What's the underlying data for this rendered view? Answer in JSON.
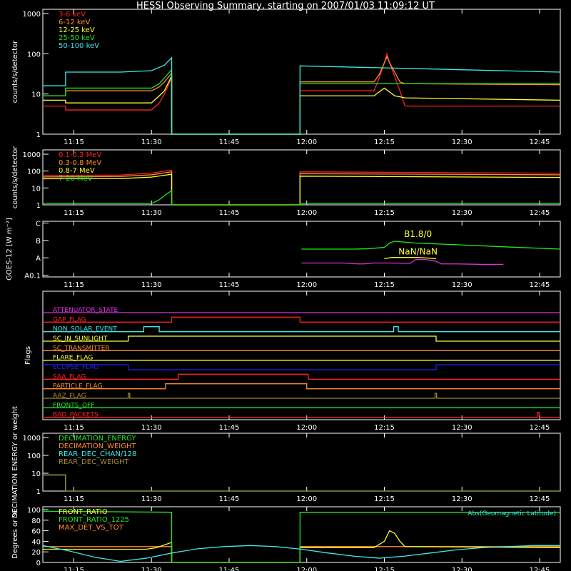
{
  "title": "HESSI Observing Summary, starting on 2007/01/03 11:09:12 UT",
  "time_labels": [
    "11:15",
    "11:30",
    "11:45",
    "12:00",
    "12:15",
    "12:30",
    "12:45"
  ],
  "time_minutes": [
    6,
    21,
    36,
    51,
    66,
    81,
    96
  ],
  "colors": {
    "red": "#ff2020",
    "orange": "#ff8c2a",
    "yellow": "#ffff30",
    "green": "#20e820",
    "cyan": "#40e8e8",
    "magenta": "#e030e0",
    "blue": "#2020ff",
    "olive": "#a08830",
    "white": "#ffffff"
  },
  "chart_data": [
    {
      "id": "lowE",
      "type": "line",
      "ylabel": "counts/s/detector",
      "yscale": "log",
      "ylim": [
        1,
        1000
      ],
      "ytick_labels": [
        "1",
        "10",
        "100",
        "1000"
      ],
      "legend": [
        {
          "name": "3-6 keV",
          "color": "red"
        },
        {
          "name": "6-12 keV",
          "color": "orange"
        },
        {
          "name": "12-25 keV",
          "color": "yellow"
        },
        {
          "name": "25-50 keV",
          "color": "green"
        },
        {
          "name": "50-100 keV",
          "color": "cyan"
        }
      ],
      "series": [
        {
          "name": "3-6 keV",
          "color": "red",
          "x": [
            0,
            4.4,
            4.4,
            21,
            22.5,
            23.5,
            24.9,
            24.9,
            49.7,
            49.7,
            64,
            65,
            66,
            66.5,
            67,
            69,
            70,
            100
          ],
          "y": [
            5,
            5,
            4,
            4,
            6,
            10,
            25,
            1,
            1,
            12,
            12,
            25,
            60,
            100,
            60,
            12,
            5,
            5
          ]
        },
        {
          "name": "6-12 keV",
          "color": "orange",
          "x": [
            0,
            4.4,
            4.4,
            21,
            22.5,
            23.5,
            24.9,
            24.9,
            49.7,
            49.7,
            64,
            65,
            66,
            66.5,
            67,
            69,
            70,
            100
          ],
          "y": [
            9,
            9,
            12,
            12,
            15,
            20,
            33,
            1,
            1,
            20,
            20,
            30,
            60,
            85,
            60,
            20,
            18,
            17
          ]
        },
        {
          "name": "12-25 keV",
          "color": "yellow",
          "x": [
            0,
            4.4,
            4.4,
            21,
            22.5,
            23.5,
            24.9,
            24.9,
            49.7,
            49.7,
            60,
            64,
            66,
            68,
            70,
            100
          ],
          "y": [
            7,
            7,
            6,
            6,
            9,
            12,
            28,
            1,
            1,
            9,
            9,
            9,
            14,
            9,
            8,
            7
          ]
        },
        {
          "name": "25-50 keV",
          "color": "green",
          "x": [
            0,
            4.4,
            4.4,
            21,
            22.5,
            24.9,
            24.9,
            49.7,
            49.7,
            100
          ],
          "y": [
            9,
            9,
            14,
            14,
            18,
            40,
            1,
            1,
            18,
            18
          ]
        },
        {
          "name": "50-100 keV",
          "color": "cyan",
          "x": [
            0,
            4.4,
            4.4,
            15,
            21,
            23.5,
            24.9,
            24.9,
            49.7,
            49.7,
            100
          ],
          "y": [
            16,
            16,
            35,
            35,
            38,
            52,
            80,
            1,
            1,
            50,
            35
          ]
        }
      ]
    },
    {
      "id": "highE",
      "type": "line",
      "ylabel": "counts/s/detector",
      "yscale": "log",
      "ylim": [
        1,
        1000
      ],
      "ytick_labels": [
        "1",
        "10",
        "100",
        "1000"
      ],
      "legend": [
        {
          "name": "0.1-0.3 MeV",
          "color": "red"
        },
        {
          "name": "0.3-0.8 MeV",
          "color": "orange"
        },
        {
          "name": "0.8-7 MeV",
          "color": "yellow"
        },
        {
          "name": "7-20 MeV",
          "color": "green"
        }
      ],
      "series": [
        {
          "name": "0.1-0.3 MeV",
          "color": "red",
          "x": [
            0,
            15,
            21,
            24.9,
            24.9,
            49.7,
            49.7,
            100
          ],
          "y": [
            55,
            58,
            75,
            115,
            1,
            1,
            90,
            75
          ]
        },
        {
          "name": "0.3-0.8 MeV",
          "color": "orange",
          "x": [
            0,
            15,
            21,
            24.9,
            24.9,
            49.7,
            49.7,
            100
          ],
          "y": [
            45,
            48,
            60,
            90,
            1,
            1,
            70,
            60
          ]
        },
        {
          "name": "0.8-7 MeV",
          "color": "yellow",
          "x": [
            0,
            15,
            21,
            24.9,
            24.9,
            49.7,
            49.7,
            100
          ],
          "y": [
            35,
            36,
            44,
            65,
            1,
            1,
            50,
            42
          ]
        },
        {
          "name": "7-20 MeV",
          "color": "green",
          "x": [
            0,
            21,
            22.5,
            23.5,
            24.9,
            24.9,
            49.7,
            49.7,
            100
          ],
          "y": [
            1.2,
            1.2,
            2,
            3.5,
            7,
            1,
            1,
            1.2,
            1.2
          ]
        }
      ]
    },
    {
      "id": "goes",
      "type": "line",
      "ylabel": "GOES-12 [W m⁻²]",
      "yscale": "log",
      "ytick_labels": [
        "A0.1",
        "A",
        "B",
        "C"
      ],
      "annotations": [
        "B1.8/0",
        "NaN/NaN"
      ],
      "series": [
        {
          "name": "GOES long",
          "color": "green",
          "x": [
            50,
            60,
            63,
            66,
            67,
            68,
            72,
            80,
            90,
            100
          ],
          "y": [
            0.5,
            0.5,
            0.52,
            0.6,
            0.85,
            0.95,
            0.85,
            0.75,
            0.62,
            0.5
          ]
        },
        {
          "name": "GOES short",
          "color": "magenta",
          "x": [
            50,
            58,
            61,
            62,
            64,
            67,
            71,
            72,
            74,
            76,
            77,
            80,
            85,
            89
          ],
          "y": [
            -0.3,
            -0.3,
            -0.35,
            -0.35,
            -0.3,
            -0.3,
            -0.32,
            -0.1,
            -0.1,
            -0.2,
            -0.35,
            -0.35,
            -0.38,
            -0.38
          ]
        },
        {
          "name": "GOES short flare",
          "color": "yellow",
          "x": [
            66,
            67.5,
            71,
            72.5,
            76
          ],
          "y": [
            -0.05,
            0.02,
            0.02,
            0.02,
            -0.05
          ]
        }
      ]
    },
    {
      "id": "flags",
      "type": "line",
      "ylabel": "Flags",
      "flags": [
        {
          "name": "ATTENUATOR_STATE",
          "color": "magenta",
          "segments": [
            [
              0,
              100,
              0
            ]
          ]
        },
        {
          "name": "GAP_FLAG",
          "color": "red",
          "segments": [
            [
              0,
              24.9,
              0
            ],
            [
              24.9,
              49.7,
              1
            ],
            [
              49.7,
              100,
              0
            ]
          ]
        },
        {
          "name": "NON_SOLAR_EVENT",
          "color": "cyan",
          "segments": [
            [
              0,
              19.5,
              0
            ],
            [
              19.5,
              22.5,
              1
            ],
            [
              22.5,
              67.8,
              0
            ],
            [
              67.8,
              68.7,
              1
            ],
            [
              68.7,
              100,
              0
            ]
          ]
        },
        {
          "name": "SC_IN_SUNLIGHT",
          "color": "yellow",
          "segments": [
            [
              0,
              16.5,
              0
            ],
            [
              16.5,
              76,
              1
            ],
            [
              76,
              100,
              0
            ]
          ]
        },
        {
          "name": "SC_TRANSMITTER",
          "color": "orange",
          "segments": [
            [
              0,
              100,
              0
            ]
          ]
        },
        {
          "name": "FLARE_FLAG",
          "color": "yellow",
          "segments": [
            [
              0,
              100,
              0
            ]
          ]
        },
        {
          "name": "ECLIPSE_FLAG",
          "color": "blue",
          "segments": [
            [
              0,
              16.5,
              1
            ],
            [
              16.5,
              76,
              0
            ],
            [
              76,
              100,
              1
            ]
          ]
        },
        {
          "name": "SAA_FLAG",
          "color": "red",
          "segments": [
            [
              0,
              26.2,
              0
            ],
            [
              26.2,
              51.3,
              1
            ],
            [
              51.3,
              100,
              0
            ]
          ]
        },
        {
          "name": "PARTICLE_FLAG",
          "color": "orange",
          "segments": [
            [
              0,
              23.7,
              0
            ],
            [
              23.7,
              51,
              1
            ],
            [
              51,
              100,
              0
            ]
          ]
        },
        {
          "name": "AAZ_FLAG",
          "color": "olive",
          "segments": [
            [
              0,
              16.5,
              0
            ],
            [
              16.5,
              16.8,
              1
            ],
            [
              16.8,
              75.8,
              0
            ],
            [
              75.8,
              76.1,
              1
            ],
            [
              76.1,
              100,
              0
            ]
          ]
        },
        {
          "name": "FRONTS_OFF",
          "color": "green",
          "segments": [
            [
              0,
              100,
              0
            ]
          ]
        },
        {
          "name": "BAD_PACKETS",
          "color": "red",
          "segments": [
            [
              0,
              95.6,
              0
            ],
            [
              95.6,
              95.9,
              1
            ],
            [
              95.9,
              100,
              0
            ]
          ]
        }
      ]
    },
    {
      "id": "decim",
      "type": "line",
      "ylabel": "DECIMATION ENERGY or weight",
      "yscale": "log",
      "ylim": [
        1,
        1000
      ],
      "ytick_labels": [
        "1",
        "10",
        "100",
        "1000"
      ],
      "legend": [
        {
          "name": "DECIMATION_ENERGY",
          "color": "green"
        },
        {
          "name": "DECIMATION_WEIGHT",
          "color": "orange"
        },
        {
          "name": "REAR_DEC_CHAN/128",
          "color": "cyan"
        },
        {
          "name": "REAR_DEC_WEIGHT",
          "color": "olive"
        }
      ],
      "series": [
        {
          "name": "REAR_DEC_CHAN/128",
          "color": "cyan",
          "x": [
            0,
            4.4,
            4.4,
            100
          ],
          "y": [
            8,
            8,
            1,
            1
          ]
        },
        {
          "name": "REAR_DEC_WEIGHT",
          "color": "olive",
          "x": [
            0,
            4.4,
            4.4,
            100
          ],
          "y": [
            8,
            8,
            1,
            1
          ]
        }
      ]
    },
    {
      "id": "ratio",
      "type": "line",
      "ylabel": "Degrees or %",
      "ylim": [
        0,
        100
      ],
      "ytick_labels": [
        "0",
        "20",
        "40",
        "60",
        "80",
        "100"
      ],
      "legend": [
        {
          "name": "FRONT_RATIO",
          "color": "yellow"
        },
        {
          "name": "FRONT_RATIO_1225",
          "color": "green"
        },
        {
          "name": "MAX_DET_VS_TOT",
          "color": "orange"
        }
      ],
      "right_label": "Abs(Geomagnetic Latitude)",
      "series": [
        {
          "name": "MAX_DET_VS_TOT",
          "color": "orange",
          "x": [
            0,
            24.9,
            24.9,
            49.7,
            49.7,
            100
          ],
          "y": [
            30,
            30,
            0,
            0,
            30,
            30
          ]
        },
        {
          "name": "FRONT_RATIO",
          "color": "yellow",
          "x": [
            0,
            20,
            22,
            24.9,
            24.9,
            49.7,
            49.7,
            64,
            66,
            67,
            68,
            69,
            70,
            100
          ],
          "y": [
            25,
            25,
            28,
            38,
            0,
            0,
            28,
            28,
            40,
            60,
            55,
            40,
            30,
            28
          ]
        },
        {
          "name": "FRONT_RATIO_1225",
          "color": "green",
          "x": [
            0,
            24.9,
            24.9,
            49.7,
            49.7,
            100
          ],
          "y": [
            97,
            95,
            0,
            0,
            95,
            95
          ]
        },
        {
          "name": "Abs(Geomagnetic Latitude)",
          "color": "cyan",
          "x": [
            0,
            5,
            10,
            15,
            20,
            25,
            30,
            35,
            40,
            45,
            50,
            55,
            60,
            65,
            70,
            75,
            80,
            85,
            90,
            95,
            100
          ],
          "y": [
            32,
            22,
            10,
            2,
            8,
            18,
            26,
            30,
            32,
            30,
            25,
            18,
            12,
            8,
            12,
            18,
            24,
            28,
            30,
            32,
            32
          ]
        }
      ]
    }
  ]
}
